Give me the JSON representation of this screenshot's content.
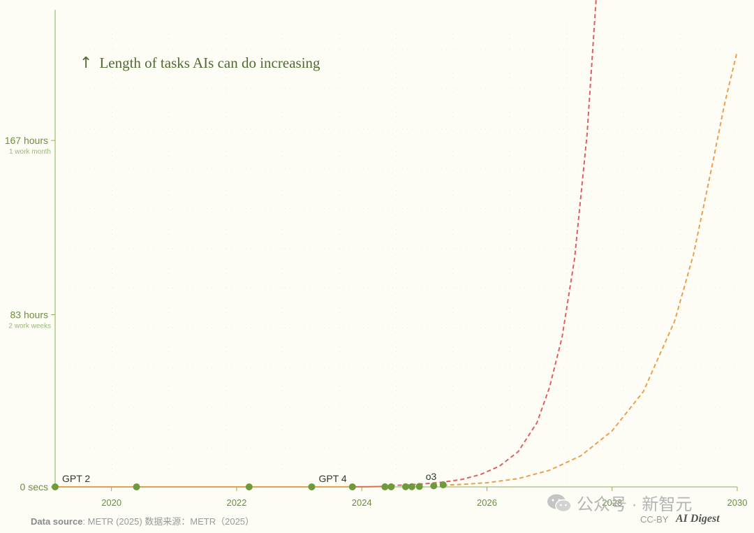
{
  "annotation": {
    "arrow": "↑",
    "text": "Length of tasks AIs can do increasing"
  },
  "chart_data": {
    "type": "line",
    "xlim": [
      2019.1,
      2030
    ],
    "ylim": [
      0,
      230
    ],
    "y_unit": "hours",
    "x_ticks": [
      "2020",
      "2022",
      "2024",
      "2026",
      "2028",
      "2030"
    ],
    "y_ticks": [
      {
        "value": 0,
        "label": "0 secs",
        "sublabel": ""
      },
      {
        "value": 83,
        "label": "83 hours",
        "sublabel": "2 work weeks"
      },
      {
        "value": 167,
        "label": "167 hours",
        "sublabel": "1 work month"
      }
    ],
    "grid": true,
    "series": [
      {
        "style": "solid",
        "color": "#e8a04c",
        "x": [
          2019.1,
          2020.4,
          2022.2,
          2023.2,
          2023.85
        ],
        "y": [
          0,
          0,
          0,
          0.01,
          0.02
        ]
      },
      {
        "style": "solid",
        "color": "#e06a50",
        "x": [
          2023.85,
          2024.1,
          2024.35
        ],
        "y": [
          0.05,
          0.1,
          0.2
        ]
      },
      {
        "style": "dashed",
        "color": "#e06060",
        "x": [
          2024.35,
          2024.7,
          2025.0,
          2025.3,
          2025.6,
          2025.9,
          2026.2,
          2026.5,
          2026.8,
          2027.0,
          2027.2,
          2027.4,
          2027.6,
          2027.8
        ],
        "y": [
          0.6,
          0.9,
          1.5,
          2.3,
          3.6,
          6,
          10,
          17,
          31,
          48,
          72,
          110,
          170,
          260
        ]
      },
      {
        "style": "dashed",
        "color": "#eba050",
        "x": [
          2025.3,
          2025.6,
          2026.0,
          2026.5,
          2027.0,
          2027.5,
          2028.0,
          2028.5,
          2029.0,
          2029.3,
          2029.6,
          2029.8,
          2030.0
        ],
        "y": [
          0.8,
          1.2,
          2,
          4,
          8,
          15,
          27,
          46,
          80,
          112,
          155,
          185,
          210
        ]
      }
    ],
    "points": [
      {
        "x": 2019.1,
        "y": 0,
        "label": "GPT 2"
      },
      {
        "x": 2020.4,
        "y": 0,
        "label": ""
      },
      {
        "x": 2022.2,
        "y": 0,
        "label": ""
      },
      {
        "x": 2023.2,
        "y": 0.01,
        "label": "GPT 4"
      },
      {
        "x": 2023.85,
        "y": 0.02,
        "label": ""
      },
      {
        "x": 2024.37,
        "y": 0.03,
        "label": ""
      },
      {
        "x": 2024.47,
        "y": 0.05,
        "label": ""
      },
      {
        "x": 2024.7,
        "y": 0.08,
        "label": ""
      },
      {
        "x": 2024.8,
        "y": 0.1,
        "label": ""
      },
      {
        "x": 2024.92,
        "y": 0.2,
        "label": ""
      },
      {
        "x": 2025.15,
        "y": 0.5,
        "label": ""
      },
      {
        "x": 2025.3,
        "y": 1.0,
        "label": "o3"
      }
    ],
    "colors": {
      "axis": "#8cb05a",
      "point": "#6e9a3c",
      "grid": "#e6eee0",
      "tick_text": "#6e8d3f",
      "sub_text": "#9ab87a"
    }
  },
  "footer": {
    "source_label": "Data source",
    "source_text": ": METR (2025)  数据来源：METR（2025）",
    "license": "CC-BY",
    "brand": "AI Digest"
  },
  "watermark": {
    "text": "公众号 · 新智元"
  }
}
